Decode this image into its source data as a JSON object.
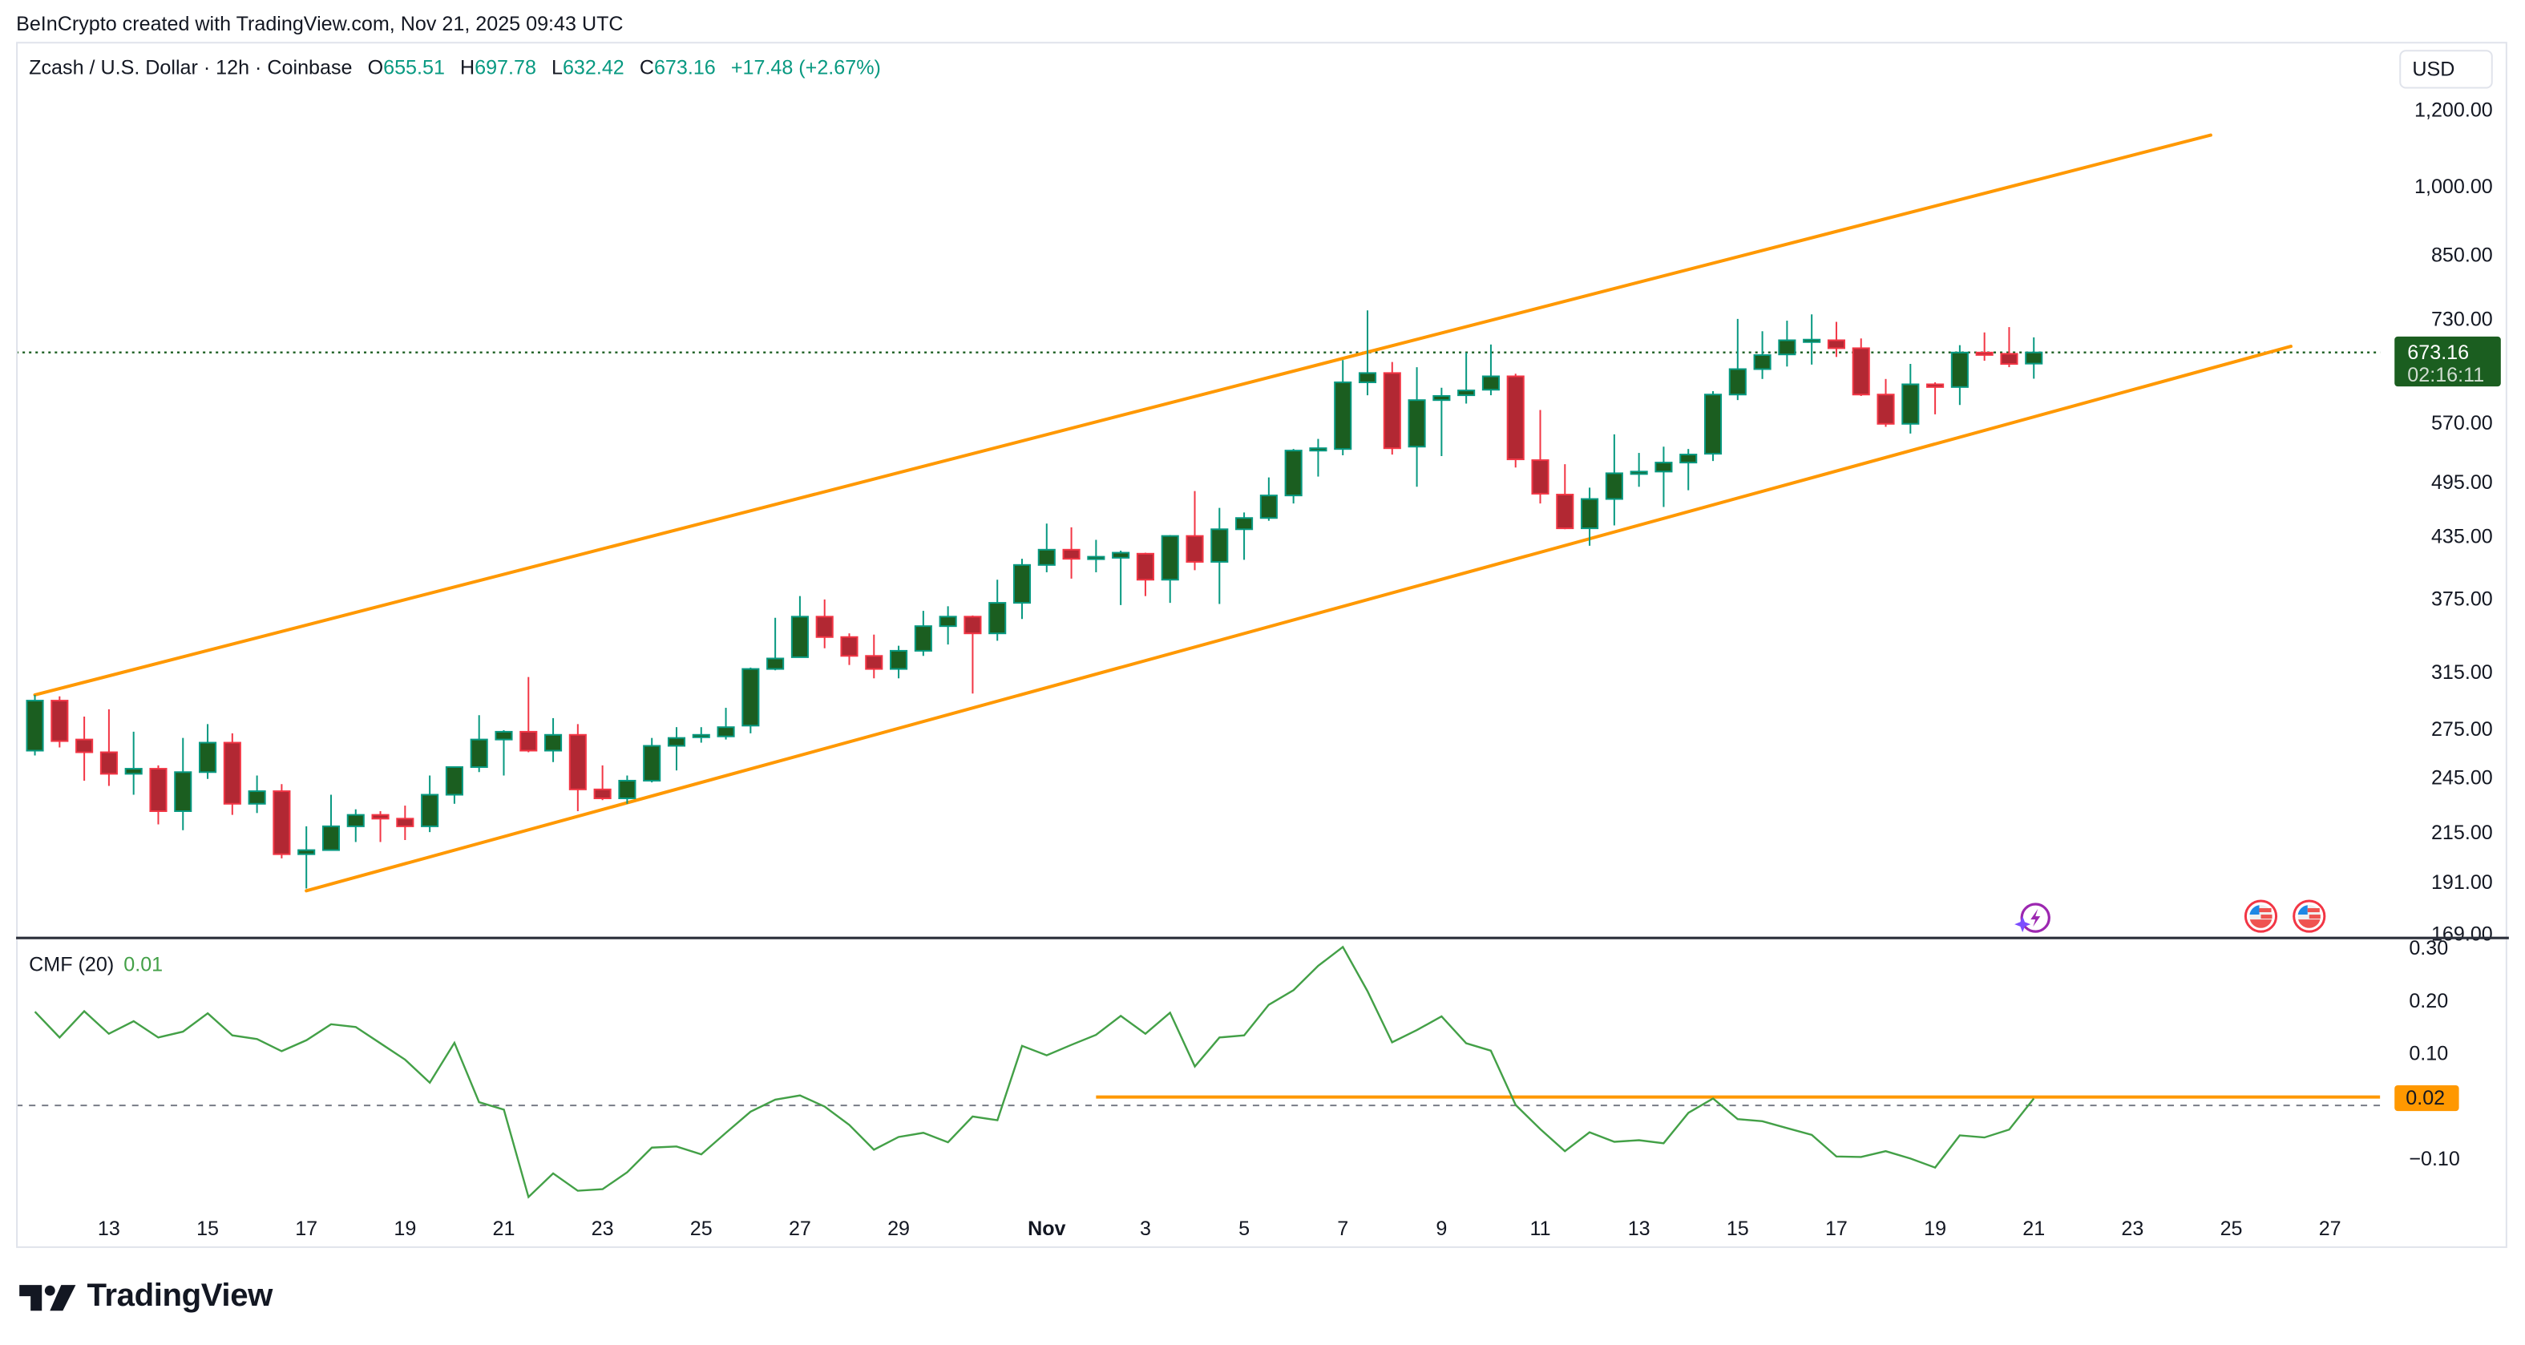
{
  "attribution": "BeInCrypto created with TradingView.com, Nov 21, 2025 09:43 UTC",
  "legend": {
    "symbol": "Zcash / U.S. Dollar · 12h · Coinbase",
    "o_label": "O",
    "o_value": "655.51",
    "h_label": "H",
    "h_value": "697.78",
    "l_label": "L",
    "l_value": "632.42",
    "c_label": "C",
    "c_value": "673.16",
    "change": "+17.48 (+2.67%)"
  },
  "currency": "USD",
  "last_price": {
    "price": "673.16",
    "countdown": "02:16:11"
  },
  "cmf_legend": {
    "name": "CMF (20)",
    "value": "0.01"
  },
  "cmf_level_label": "0.02",
  "logo_text": "TradingView",
  "colors": {
    "up_body": "#1b5e20",
    "up_border": "#089981",
    "down_body": "#b22833",
    "down_border": "#f23645",
    "channel": "#ff9800",
    "cmf_line": "#43a047",
    "last_price_bg": "#1b5e20",
    "cmf_level": "#ff9800"
  },
  "icons": [
    "ai-lightning-event-icon",
    "us-flag-event-icon",
    "us-flag-event-icon"
  ],
  "chart_data": [
    {
      "type": "candlestick",
      "title": "Zcash / U.S. Dollar · 12h · Coinbase",
      "y_scale": "log",
      "y_ticks": [
        "1,200.00",
        "1,000.00",
        "850.00",
        "730.00",
        "570.00",
        "495.00",
        "435.00",
        "375.00",
        "315.00",
        "275.00",
        "245.00",
        "215.00",
        "191.00",
        "169.00"
      ],
      "x_ticks": [
        {
          "label": "13",
          "date": "2025-10-13T00:00"
        },
        {
          "label": "15",
          "date": "2025-10-15T00:00"
        },
        {
          "label": "17",
          "date": "2025-10-17T00:00"
        },
        {
          "label": "19",
          "date": "2025-10-19T00:00"
        },
        {
          "label": "21",
          "date": "2025-10-21T00:00"
        },
        {
          "label": "23",
          "date": "2025-10-23T00:00"
        },
        {
          "label": "25",
          "date": "2025-10-25T00:00"
        },
        {
          "label": "27",
          "date": "2025-10-27T00:00"
        },
        {
          "label": "29",
          "date": "2025-10-29T00:00"
        },
        {
          "label": "Nov",
          "date": "2025-11-01T00:00"
        },
        {
          "label": "3",
          "date": "2025-11-03T00:00"
        },
        {
          "label": "5",
          "date": "2025-11-05T00:00"
        },
        {
          "label": "7",
          "date": "2025-11-07T00:00"
        },
        {
          "label": "9",
          "date": "2025-11-09T00:00"
        },
        {
          "label": "11",
          "date": "2025-11-11T00:00"
        },
        {
          "label": "13",
          "date": "2025-11-13T00:00"
        },
        {
          "label": "15",
          "date": "2025-11-15T00:00"
        },
        {
          "label": "17",
          "date": "2025-11-17T00:00"
        },
        {
          "label": "19",
          "date": "2025-11-19T00:00"
        },
        {
          "label": "21",
          "date": "2025-11-21T00:00"
        },
        {
          "label": "23",
          "date": "2025-11-23T00:00"
        },
        {
          "label": "25",
          "date": "2025-11-25T00:00"
        },
        {
          "label": "27",
          "date": "2025-11-27T00:00"
        }
      ],
      "columns": [
        "time",
        "open",
        "high",
        "low",
        "close"
      ],
      "candles": [
        [
          "2025-10-11T12:00",
          261,
          298,
          258,
          294
        ],
        [
          "2025-10-12T00:00",
          294,
          297,
          263,
          267
        ],
        [
          "2025-10-12T12:00",
          268,
          283,
          243,
          260
        ],
        [
          "2025-10-13T00:00",
          260,
          288,
          240,
          247
        ],
        [
          "2025-10-13T12:00",
          247,
          273,
          235,
          250
        ],
        [
          "2025-10-14T00:00",
          250,
          252,
          219,
          226
        ],
        [
          "2025-10-14T12:00",
          226,
          269,
          216,
          248
        ],
        [
          "2025-10-15T00:00",
          248,
          278,
          244,
          266
        ],
        [
          "2025-10-15T12:00",
          266,
          272,
          224,
          230
        ],
        [
          "2025-10-16T00:00",
          230,
          246,
          225,
          237
        ],
        [
          "2025-10-16T12:00",
          237,
          241,
          202,
          204
        ],
        [
          "2025-10-17T00:00",
          204,
          218,
          188,
          206
        ],
        [
          "2025-10-17T12:00",
          206,
          235,
          206,
          218
        ],
        [
          "2025-10-18T00:00",
          218,
          227,
          210,
          224
        ],
        [
          "2025-10-18T12:00",
          224,
          226,
          210,
          222
        ],
        [
          "2025-10-19T00:00",
          222,
          229,
          211,
          218
        ],
        [
          "2025-10-19T12:00",
          218,
          246,
          215,
          235
        ],
        [
          "2025-10-20T00:00",
          235,
          251,
          230,
          251
        ],
        [
          "2025-10-20T12:00",
          251,
          284,
          248,
          268
        ],
        [
          "2025-10-21T00:00",
          268,
          274,
          246,
          273
        ],
        [
          "2025-10-21T12:00",
          273,
          311,
          260,
          261
        ],
        [
          "2025-10-22T00:00",
          261,
          282,
          254,
          271
        ],
        [
          "2025-10-22T12:00",
          271,
          278,
          226,
          238
        ],
        [
          "2025-10-23T00:00",
          238,
          252,
          232,
          233
        ],
        [
          "2025-10-23T12:00",
          233,
          246,
          230,
          243
        ],
        [
          "2025-10-24T00:00",
          243,
          269,
          242,
          264
        ],
        [
          "2025-10-24T12:00",
          264,
          276,
          249,
          269
        ],
        [
          "2025-10-25T00:00",
          270,
          276,
          266,
          271
        ],
        [
          "2025-10-25T12:00",
          270,
          289,
          268,
          276
        ],
        [
          "2025-10-26T00:00",
          277,
          318,
          272,
          317
        ],
        [
          "2025-10-26T12:00",
          317,
          358,
          316,
          325
        ],
        [
          "2025-10-27T00:00",
          326,
          377,
          326,
          359
        ],
        [
          "2025-10-27T12:00",
          359,
          374,
          333,
          342
        ],
        [
          "2025-10-28T00:00",
          342,
          345,
          320,
          327
        ],
        [
          "2025-10-28T12:00",
          327,
          344,
          310,
          317
        ],
        [
          "2025-10-29T00:00",
          317,
          335,
          310,
          331
        ],
        [
          "2025-10-29T12:00",
          331,
          364,
          327,
          351
        ],
        [
          "2025-10-30T00:00",
          351,
          368,
          336,
          359
        ],
        [
          "2025-10-30T12:00",
          359,
          360,
          299,
          345
        ],
        [
          "2025-10-31T00:00",
          345,
          392,
          339,
          371
        ],
        [
          "2025-10-31T12:00",
          371,
          412,
          357,
          406
        ],
        [
          "2025-11-01T00:00",
          406,
          448,
          399,
          421
        ],
        [
          "2025-11-01T12:00",
          421,
          444,
          393,
          412
        ],
        [
          "2025-11-02T00:00",
          413,
          431,
          399,
          414
        ],
        [
          "2025-11-02T12:00",
          413,
          420,
          369,
          418
        ],
        [
          "2025-11-03T00:00",
          417,
          418,
          377,
          392
        ],
        [
          "2025-11-03T12:00",
          392,
          436,
          371,
          435
        ],
        [
          "2025-11-04T00:00",
          435,
          484,
          401,
          409
        ],
        [
          "2025-11-04T12:00",
          409,
          465,
          370,
          442
        ],
        [
          "2025-11-05T00:00",
          442,
          460,
          411,
          454
        ],
        [
          "2025-11-05T12:00",
          454,
          500,
          451,
          479
        ],
        [
          "2025-11-06T00:00",
          479,
          535,
          470,
          533
        ],
        [
          "2025-11-06T12:00",
          533,
          548,
          501,
          536
        ],
        [
          "2025-11-07T00:00",
          535,
          661,
          527,
          627
        ],
        [
          "2025-11-07T12:00",
          627,
          744,
          608,
          641
        ],
        [
          "2025-11-08T00:00",
          641,
          658,
          528,
          536
        ],
        [
          "2025-11-08T12:00",
          538,
          650,
          489,
          601
        ],
        [
          "2025-11-09T00:00",
          601,
          619,
          526,
          607
        ],
        [
          "2025-11-09T12:00",
          608,
          673,
          596,
          615
        ],
        [
          "2025-11-10T00:00",
          616,
          686,
          608,
          636
        ],
        [
          "2025-11-10T12:00",
          636,
          640,
          512,
          522
        ],
        [
          "2025-11-11T00:00",
          521,
          587,
          470,
          481
        ],
        [
          "2025-11-11T12:00",
          480,
          516,
          442,
          443
        ],
        [
          "2025-11-12T00:00",
          443,
          488,
          425,
          475
        ],
        [
          "2025-11-12T12:00",
          475,
          554,
          446,
          505
        ],
        [
          "2025-11-13T00:00",
          506,
          530,
          489,
          507
        ],
        [
          "2025-11-13T12:00",
          507,
          538,
          466,
          518
        ],
        [
          "2025-11-14T00:00",
          518,
          535,
          485,
          528
        ],
        [
          "2025-11-14T12:00",
          529,
          614,
          520,
          609
        ],
        [
          "2025-11-15T00:00",
          609,
          729,
          601,
          647
        ],
        [
          "2025-11-15T12:00",
          647,
          708,
          632,
          669
        ],
        [
          "2025-11-16T00:00",
          670,
          726,
          651,
          693
        ],
        [
          "2025-11-16T12:00",
          693,
          737,
          654,
          694
        ],
        [
          "2025-11-17T00:00",
          693,
          724,
          666,
          680
        ],
        [
          "2025-11-17T12:00",
          680,
          696,
          607,
          609
        ],
        [
          "2025-11-18T00:00",
          609,
          632,
          564,
          568
        ],
        [
          "2025-11-18T12:00",
          568,
          655,
          555,
          624
        ],
        [
          "2025-11-19T00:00",
          624,
          627,
          581,
          620
        ],
        [
          "2025-11-19T12:00",
          620,
          685,
          594,
          673
        ],
        [
          "2025-11-20T00:00",
          673,
          706,
          660,
          672
        ],
        [
          "2025-11-20T12:00",
          671,
          715,
          650,
          655
        ],
        [
          "2025-11-21T00:00",
          655.51,
          697.78,
          632.42,
          673.16
        ]
      ],
      "last_price": 673.16,
      "trendlines": [
        {
          "from": [
            "2025-10-11T12:00",
            298
          ],
          "to": [
            "2025-11-24T14:00",
            1129
          ]
        },
        {
          "from": [
            "2025-10-17T00:00",
            187
          ],
          "to": [
            "2025-11-26T05:00",
            683
          ]
        }
      ]
    },
    {
      "type": "line",
      "title": "CMF (20)",
      "y_ticks": [
        "0.30",
        "0.20",
        "0.10",
        "−0.10"
      ],
      "zero_line": true,
      "values": [
        0.178,
        0.129,
        0.179,
        0.136,
        0.16,
        0.129,
        0.14,
        0.175,
        0.133,
        0.126,
        0.103,
        0.124,
        0.154,
        0.149,
        0.118,
        0.087,
        0.043,
        0.119,
        0.006,
        -0.008,
        -0.174,
        -0.129,
        -0.162,
        -0.159,
        -0.127,
        -0.08,
        -0.078,
        -0.093,
        -0.052,
        -0.012,
        0.011,
        0.019,
        -0.002,
        -0.037,
        -0.084,
        -0.06,
        -0.052,
        -0.07,
        -0.021,
        -0.028,
        0.113,
        0.095,
        0.115,
        0.134,
        0.17,
        0.136,
        0.176,
        0.074,
        0.129,
        0.133,
        0.191,
        0.219,
        0.265,
        0.301,
        0.217,
        0.12,
        0.143,
        0.169,
        0.118,
        0.104,
        0.001,
        -0.045,
        -0.087,
        -0.051,
        -0.069,
        -0.066,
        -0.072,
        -0.014,
        0.013,
        -0.026,
        -0.03,
        -0.043,
        -0.056,
        -0.097,
        -0.098,
        -0.087,
        -0.101,
        -0.118,
        -0.057,
        -0.061,
        -0.046,
        0.013
      ],
      "level": {
        "value": 0.016,
        "from": "2025-11-02T00:00"
      }
    }
  ]
}
